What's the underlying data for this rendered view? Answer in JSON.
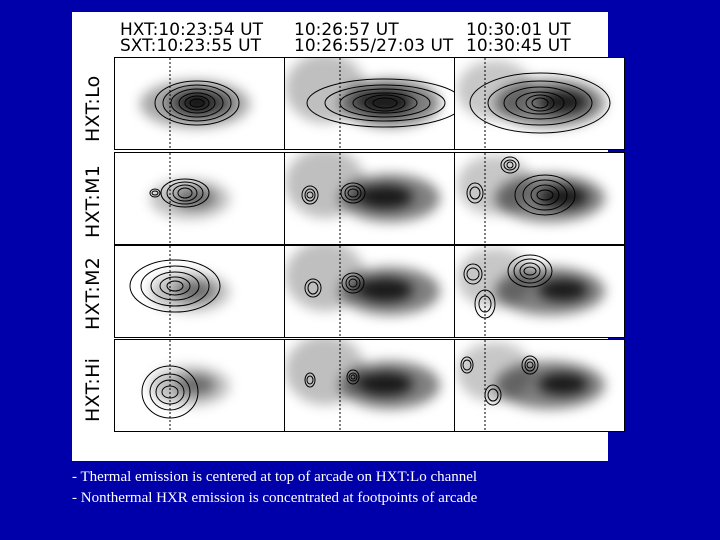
{
  "figure": {
    "headers": [
      {
        "line1": "HXT:10:23:54 UT",
        "line2": "SXT:10:23:55 UT"
      },
      {
        "line1": "10:26:57 UT",
        "line2": "10:26:55/27:03 UT"
      },
      {
        "line1": "10:30:01 UT",
        "line2": "10:30:45 UT"
      }
    ],
    "row_labels": [
      "HXT:Lo",
      "HXT:M1",
      "HXT:M2",
      "HXT:Hi"
    ]
  },
  "captions": [
    "- Thermal emission is centered at top of arcade on HXT:Lo channel",
    "- Nonthermal HXR emission is concentrated at footpoints of arcade"
  ],
  "colors": {
    "background": "#0000aa",
    "figure": "#ffffff",
    "caption": "#ffffff"
  }
}
